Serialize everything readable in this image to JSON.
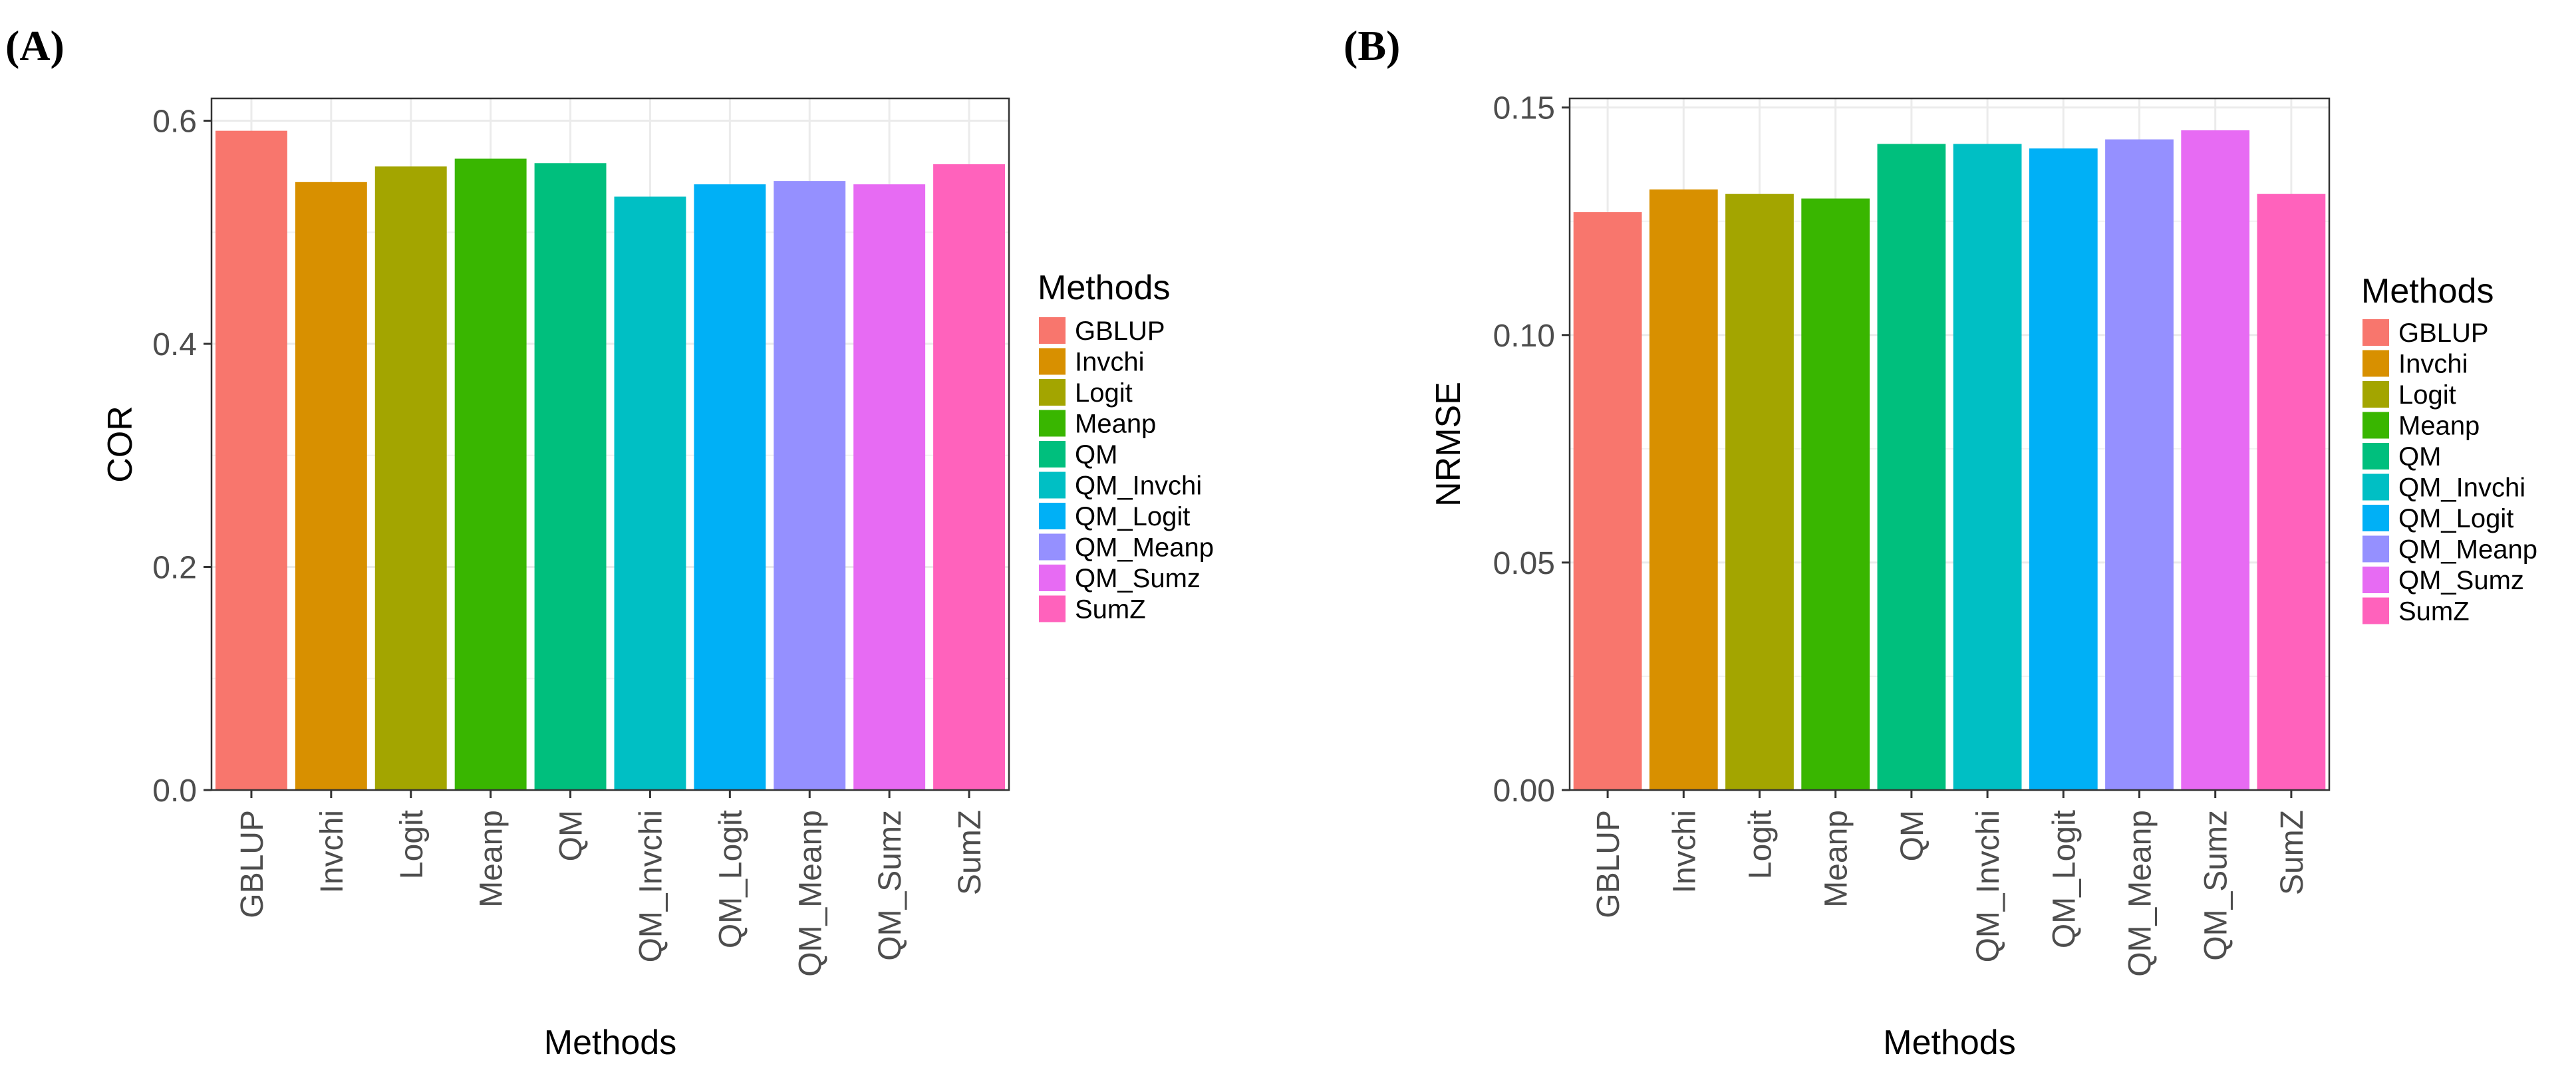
{
  "chart_data": [
    {
      "panel": "(A)",
      "type": "bar",
      "title": "",
      "xlabel": "Methods",
      "ylabel": "COR",
      "ylim": [
        0,
        0.62
      ],
      "yticks": [
        0.0,
        0.2,
        0.4,
        0.6
      ],
      "ytick_labels": [
        "0.0",
        "0.2",
        "0.4",
        "0.6"
      ],
      "grid": true,
      "categories": [
        "GBLUP",
        "Invchi",
        "Logit",
        "Meanp",
        "QM",
        "QM_Invchi",
        "QM_Logit",
        "QM_Meanp",
        "QM_Sumz",
        "SumZ"
      ],
      "values": [
        0.591,
        0.545,
        0.559,
        0.566,
        0.562,
        0.532,
        0.543,
        0.546,
        0.543,
        0.561
      ],
      "colors": [
        "#F8766D",
        "#D89000",
        "#A3A500",
        "#39B600",
        "#00BF7D",
        "#00BFC4",
        "#00B0F6",
        "#9590FF",
        "#E76BF3",
        "#FF62BC"
      ],
      "legend": {
        "title": "Methods",
        "position": "right",
        "entries": [
          "GBLUP",
          "Invchi",
          "Logit",
          "Meanp",
          "QM",
          "QM_Invchi",
          "QM_Logit",
          "QM_Meanp",
          "QM_Sumz",
          "SumZ"
        ]
      }
    },
    {
      "panel": "(B)",
      "type": "bar",
      "title": "",
      "xlabel": "Methods",
      "ylabel": "NRMSE",
      "ylim": [
        0,
        0.152
      ],
      "yticks": [
        0.0,
        0.05,
        0.1,
        0.15
      ],
      "ytick_labels": [
        "0.00",
        "0.05",
        "0.10",
        "0.15"
      ],
      "grid": true,
      "categories": [
        "GBLUP",
        "Invchi",
        "Logit",
        "Meanp",
        "QM",
        "QM_Invchi",
        "QM_Logit",
        "QM_Meanp",
        "QM_Sumz",
        "SumZ"
      ],
      "values": [
        0.127,
        0.132,
        0.131,
        0.13,
        0.142,
        0.142,
        0.141,
        0.143,
        0.145,
        0.131
      ],
      "colors": [
        "#F8766D",
        "#D89000",
        "#A3A500",
        "#39B600",
        "#00BF7D",
        "#00BFC4",
        "#00B0F6",
        "#9590FF",
        "#E76BF3",
        "#FF62BC"
      ],
      "legend": {
        "title": "Methods",
        "position": "right",
        "entries": [
          "GBLUP",
          "Invchi",
          "Logit",
          "Meanp",
          "QM",
          "QM_Invchi",
          "QM_Logit",
          "QM_Meanp",
          "QM_Sumz",
          "SumZ"
        ]
      }
    }
  ]
}
